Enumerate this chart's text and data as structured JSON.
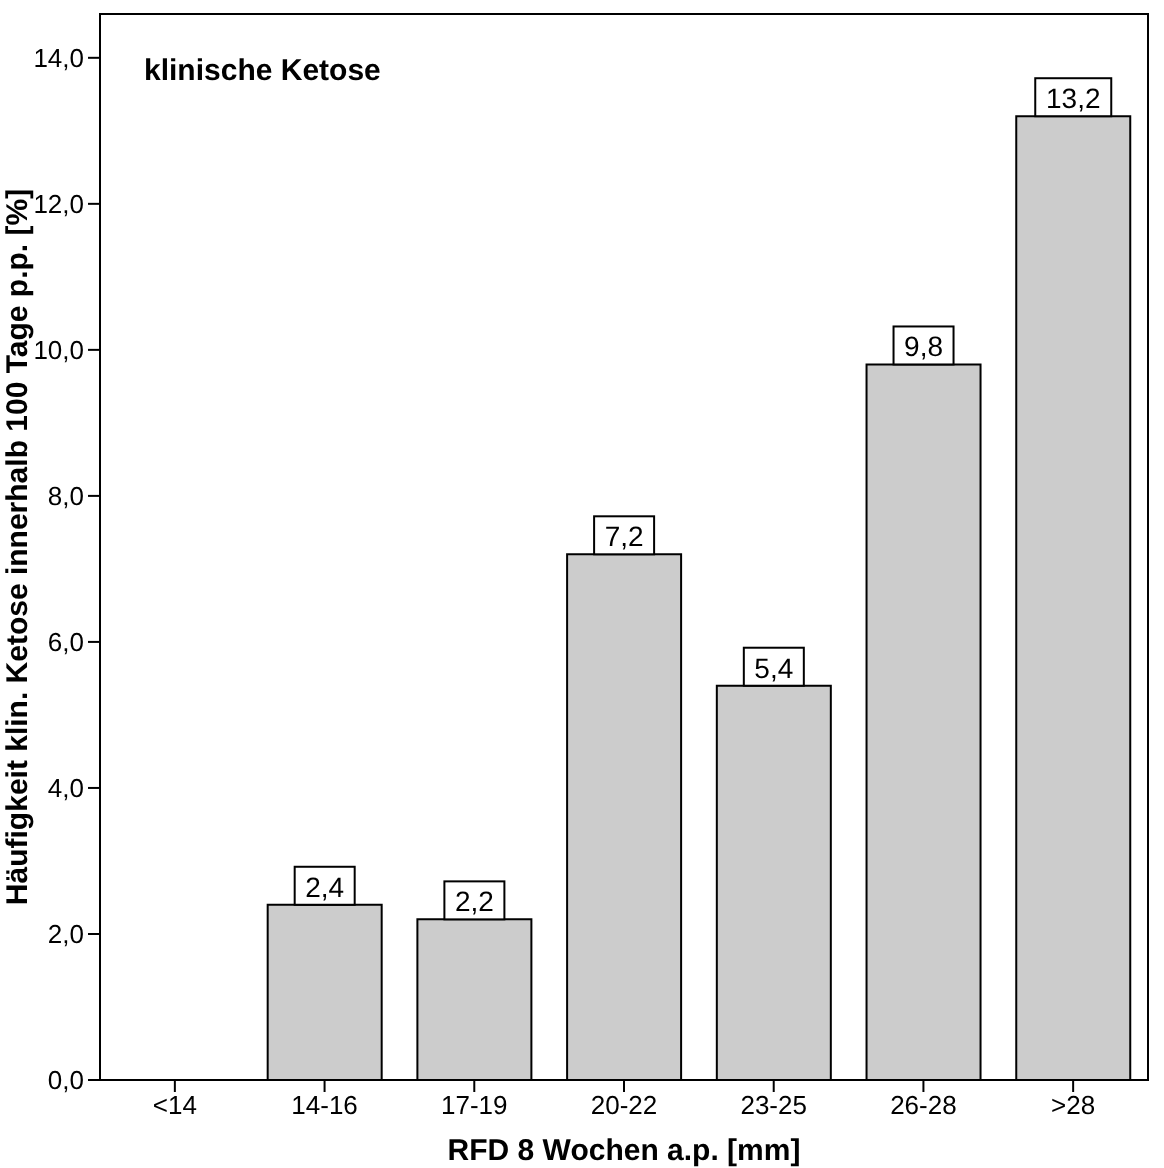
{
  "chart_data": {
    "type": "bar",
    "xlabel": "RFD 8 Wochen a.p. [mm]",
    "ylabel": "Häufigkeit klin. Ketose innerhalb 100 Tage p.p. [%]",
    "annotations": [
      "klinische Ketose"
    ],
    "categories": [
      "<14",
      "14-16",
      "17-19",
      "20-22",
      "23-25",
      "26-28",
      ">28"
    ],
    "values": [
      0,
      2.4,
      2.2,
      7.2,
      5.4,
      9.8,
      13.2
    ],
    "value_labels": [
      null,
      "2,4",
      "2,2",
      "7,2",
      "5,4",
      "9,8",
      "13,2"
    ],
    "color": "#cccccc",
    "ylim": [
      0,
      14.6
    ],
    "yticks": [
      {
        "value": 0,
        "label": "0,0"
      },
      {
        "value": 2,
        "label": "2,0"
      },
      {
        "value": 4,
        "label": "4,0"
      },
      {
        "value": 6,
        "label": "6,0"
      },
      {
        "value": 8,
        "label": "8,0"
      },
      {
        "value": 10,
        "label": "10,0"
      },
      {
        "value": 12,
        "label": "12,0"
      },
      {
        "value": 14,
        "label": "14,0"
      }
    ],
    "grid": false,
    "legend": false
  }
}
